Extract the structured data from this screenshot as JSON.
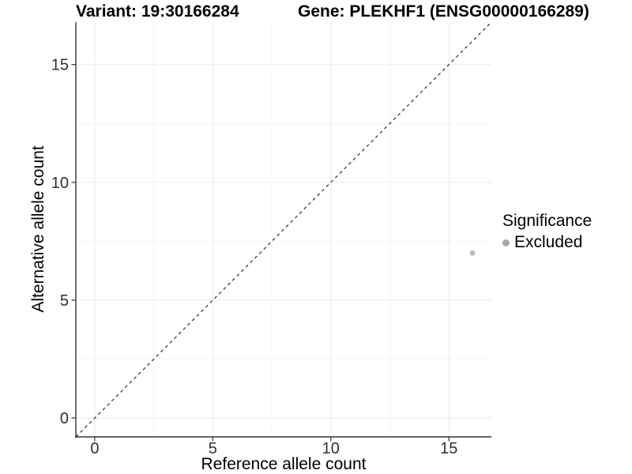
{
  "chart_data": {
    "type": "scatter",
    "title_variant": "Variant: 19:30166284",
    "title_gene": "Gene: PLEKHF1 (ENSG00000166289)",
    "xlabel": "Reference allele count",
    "ylabel": "Alternative allele count",
    "xlim": [
      -0.8,
      16.8
    ],
    "ylim": [
      -0.8,
      16.8
    ],
    "xticks": [
      0,
      5,
      10,
      15
    ],
    "yticks": [
      0,
      5,
      10,
      15
    ],
    "minor_ticks": [
      2.5,
      7.5,
      12.5
    ],
    "grid": true,
    "points": [
      {
        "x": 16,
        "y": 7,
        "series": "Excluded"
      }
    ],
    "reference_line": {
      "slope": 1,
      "intercept": 0,
      "style": "dashed"
    },
    "legend": {
      "title": "Significance",
      "position": "right",
      "items": [
        {
          "label": "Excluded",
          "color": "#b3b3b3"
        }
      ]
    },
    "colors": {
      "point": "#b9b9b9",
      "legend_dot": "#a9a9a9",
      "axis_line": "#333333",
      "tick_label": "#303030",
      "grid_major": "#e9e9e9",
      "grid_minor": "#f4f4f4",
      "reference_line": "#1a1a1a",
      "background": "#ffffff"
    }
  }
}
